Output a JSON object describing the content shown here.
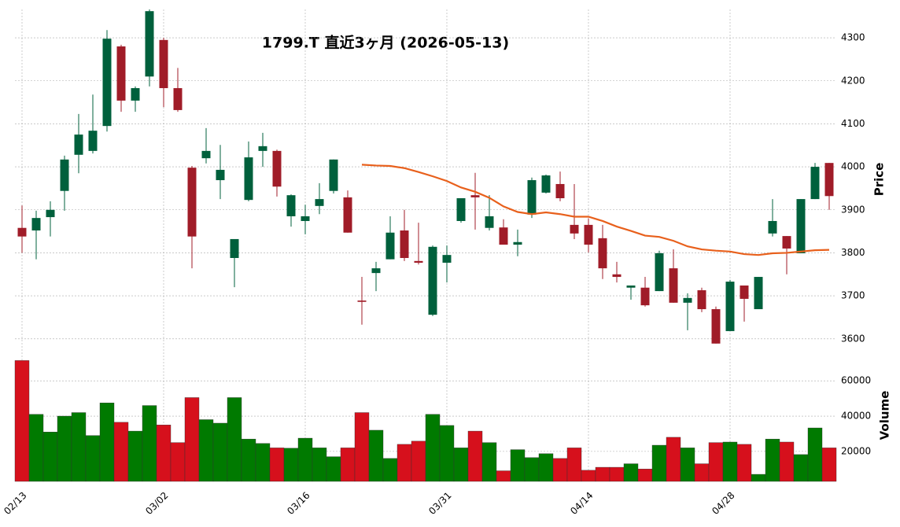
{
  "chart_data": {
    "type": "candlestick",
    "title": "1799.T  直近3ヶ月  (2026-05-13)",
    "categories": [
      "02/13",
      null,
      null,
      null,
      null,
      null,
      null,
      null,
      null,
      null,
      "03/02",
      null,
      null,
      null,
      null,
      null,
      null,
      null,
      null,
      null,
      "03/16",
      null,
      null,
      null,
      null,
      null,
      null,
      null,
      null,
      null,
      "03/31",
      null,
      null,
      null,
      null,
      null,
      null,
      null,
      null,
      null,
      "04/14",
      null,
      null,
      null,
      null,
      null,
      null,
      null,
      null,
      null,
      "04/28",
      null,
      null,
      null,
      null,
      null,
      null,
      null
    ],
    "open": [
      3858,
      3852,
      3883,
      3944,
      4028,
      4037,
      4095,
      4280,
      4154,
      4210,
      4295,
      4183,
      3998,
      4020,
      3969,
      3788,
      3923,
      4037,
      4037,
      3885,
      3874,
      3909,
      3944,
      3929,
      3689,
      3753,
      3785,
      3852,
      3781,
      3656,
      3777,
      3874,
      3934,
      3858,
      3859,
      3819,
      3889,
      3940,
      3960,
      3865,
      3865,
      3834,
      3750,
      3719,
      3719,
      3711,
      3764,
      3684,
      3713,
      3669,
      3618,
      3724,
      3669,
      3845,
      3839,
      3799,
      3925,
      4009
    ],
    "high": [
      3910,
      3898,
      3920,
      4026,
      4123,
      4168,
      4318,
      4284,
      4187,
      4366,
      4300,
      4230,
      4002,
      4090,
      4051,
      3832,
      4059,
      4079,
      4040,
      3936,
      3912,
      3962,
      4017,
      3945,
      3744,
      3779,
      3885,
      3900,
      3870,
      3817,
      3817,
      3927,
      3986,
      3934,
      3878,
      3854,
      3975,
      3982,
      3989,
      3960,
      3880,
      3865,
      3779,
      3724,
      3744,
      3805,
      3808,
      3706,
      3719,
      3675,
      3737,
      3724,
      3744,
      3925,
      3839,
      3925,
      4009,
      4009
    ],
    "low": [
      3800,
      3785,
      3838,
      3898,
      3985,
      4031,
      4082,
      4128,
      4128,
      4187,
      4139,
      4128,
      3764,
      4008,
      3925,
      3720,
      3920,
      4000,
      3931,
      3861,
      3843,
      3890,
      3938,
      3847,
      3633,
      3711,
      3785,
      3781,
      3773,
      3653,
      3731,
      3870,
      3854,
      3852,
      3819,
      3792,
      3881,
      3938,
      3920,
      3832,
      3801,
      3739,
      3731,
      3691,
      3675,
      3711,
      3684,
      3620,
      3662,
      3589,
      3618,
      3640,
      3669,
      3838,
      3750,
      3799,
      3925,
      3900
    ],
    "close": [
      3838,
      3881,
      3900,
      4017,
      4075,
      4084,
      4298,
      4154,
      4183,
      4362,
      4183,
      4132,
      3838,
      4037,
      3993,
      3832,
      4022,
      4048,
      3954,
      3934,
      3885,
      3925,
      4017,
      3847,
      3686,
      3764,
      3847,
      3788,
      3777,
      3814,
      3795,
      3927,
      3929,
      3885,
      3819,
      3825,
      3969,
      3980,
      3927,
      3845,
      3819,
      3764,
      3744,
      3724,
      3678,
      3799,
      3684,
      3695,
      3669,
      3589,
      3733,
      3693,
      3744,
      3874,
      3810,
      3925,
      4000,
      3932
    ],
    "volume": [
      71500,
      41000,
      31000,
      40000,
      42000,
      29000,
      47500,
      36500,
      31500,
      46000,
      35000,
      25000,
      50500,
      38000,
      36000,
      50500,
      27000,
      24500,
      22000,
      21800,
      27500,
      22000,
      17000,
      22000,
      42000,
      32000,
      16000,
      24000,
      25800,
      41000,
      34700,
      22000,
      31500,
      25000,
      9000,
      21000,
      16500,
      18700,
      16000,
      22000,
      9300,
      11000,
      11000,
      13000,
      10000,
      23500,
      28000,
      22000,
      13000,
      25000,
      25300,
      24000,
      7000,
      27000,
      25300,
      18200,
      33300,
      22000
    ],
    "moving_average": {
      "color": "#e8601c",
      "values": [
        null,
        null,
        null,
        null,
        null,
        null,
        null,
        null,
        null,
        null,
        null,
        null,
        null,
        null,
        null,
        null,
        null,
        null,
        null,
        null,
        null,
        null,
        null,
        null,
        4005,
        4003,
        4002,
        3997,
        3988,
        3978,
        3967,
        3952,
        3942,
        3928,
        3908,
        3895,
        3890,
        3894,
        3890,
        3884,
        3884,
        3874,
        3861,
        3851,
        3840,
        3837,
        3828,
        3815,
        3808,
        3805,
        3803,
        3797,
        3795,
        3799,
        3800,
        3803,
        3806,
        3807
      ]
    },
    "ylim": [
      3563,
      4366
    ],
    "yticks": [
      3600,
      3700,
      3800,
      3900,
      4000,
      4100,
      4200,
      4300
    ],
    "y_label": "Price",
    "volume_ylim": [
      3000,
      73000
    ],
    "volume_yticks": [
      20000,
      40000,
      60000
    ],
    "volume_label": "Volume",
    "up_color": "#00603c",
    "down_color": "#a01c28",
    "volume_up_color": "#007a00",
    "volume_down_color": "#d6101c",
    "grid": true
  }
}
